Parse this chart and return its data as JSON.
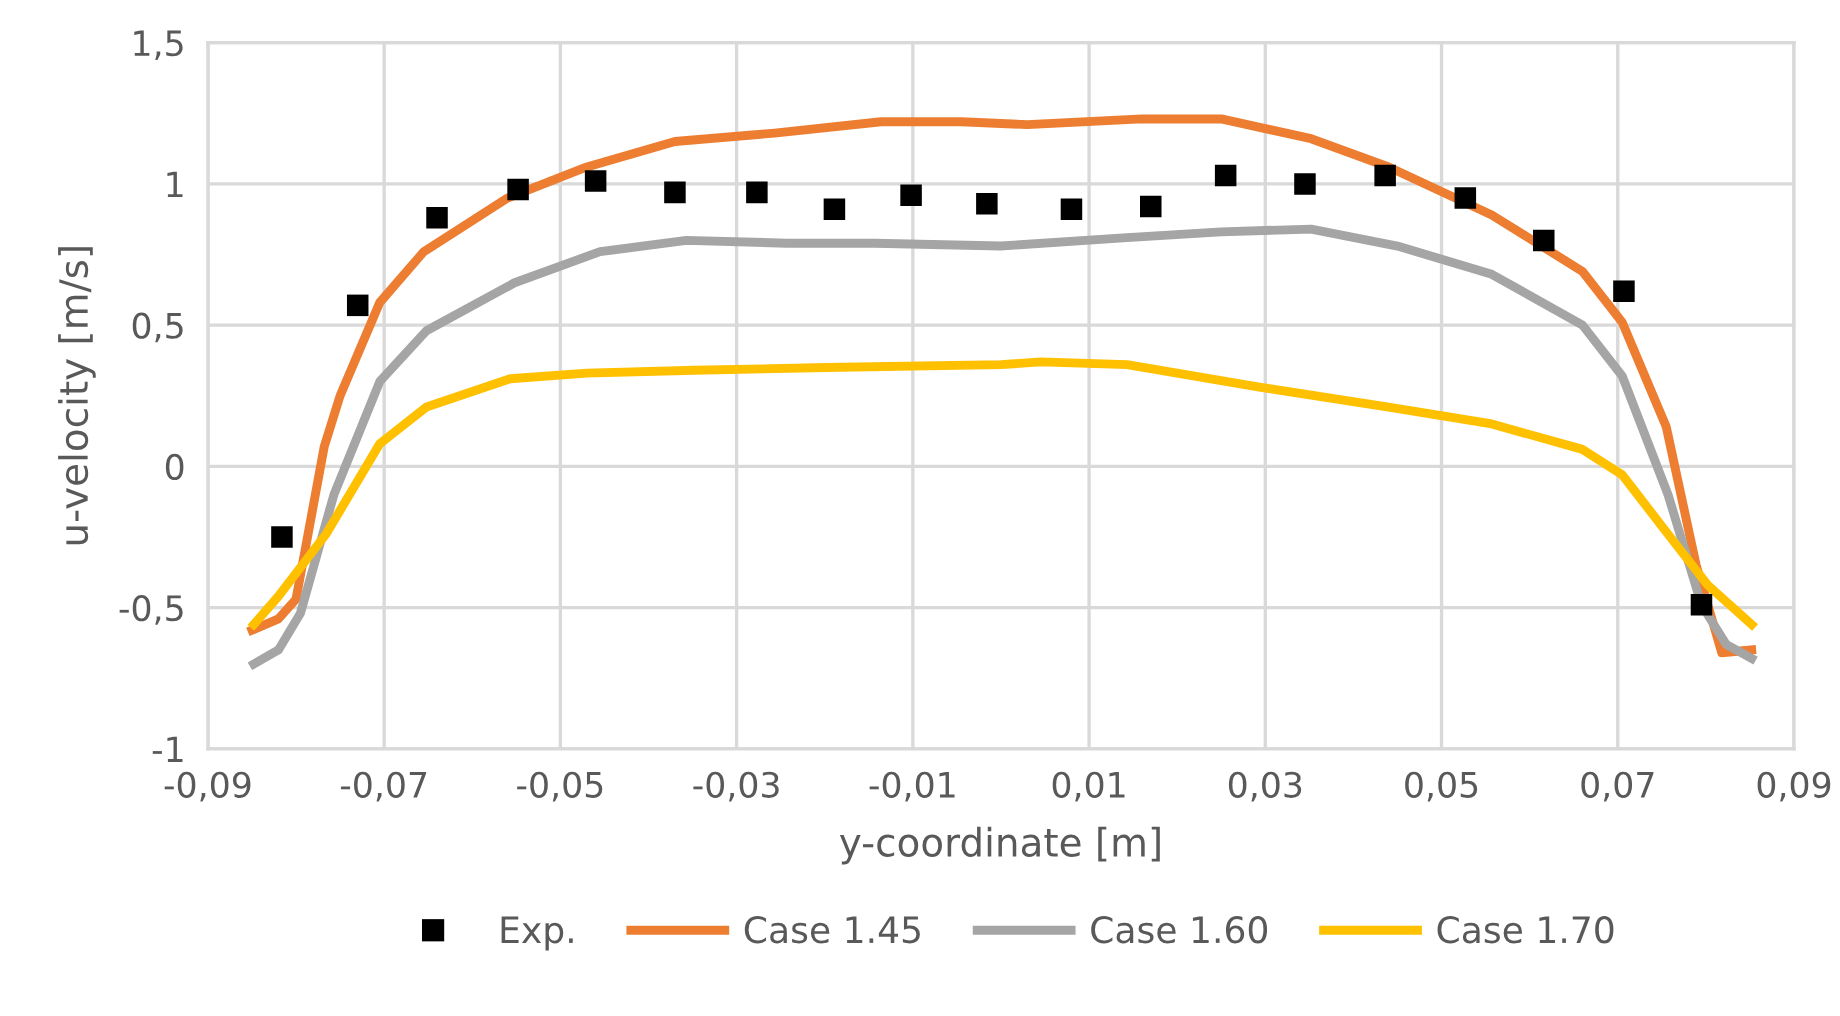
{
  "chart_data": {
    "type": "line",
    "xlabel": "y-coordinate [m]",
    "ylabel": "u-velocity [m/s]",
    "xlim": [
      -0.09,
      0.09
    ],
    "ylim": [
      -1,
      1.5
    ],
    "xticks": [
      {
        "value": -0.09,
        "label": "-0,09"
      },
      {
        "value": -0.07,
        "label": "-0,07"
      },
      {
        "value": -0.05,
        "label": "-0,05"
      },
      {
        "value": -0.03,
        "label": "-0,03"
      },
      {
        "value": -0.01,
        "label": "-0,01"
      },
      {
        "value": 0.01,
        "label": "0,01"
      },
      {
        "value": 0.03,
        "label": "0,03"
      },
      {
        "value": 0.05,
        "label": "0,05"
      },
      {
        "value": 0.07,
        "label": "0,07"
      },
      {
        "value": 0.09,
        "label": "0,09"
      }
    ],
    "yticks": [
      -1,
      {
        "value": -0.5,
        "label": "-0,5"
      },
      0,
      {
        "value": 0.5,
        "label": "0,5"
      },
      1,
      {
        "value": 1.5,
        "label": "1,5"
      }
    ],
    "grid": true,
    "legend": "bottom",
    "series": [
      {
        "name": "Exp.",
        "type": "scatter",
        "marker": "square",
        "color": "#000000",
        "x": [
          -0.0816,
          -0.073,
          -0.064,
          -0.0548,
          -0.046,
          -0.037,
          -0.0277,
          -0.0189,
          -0.0102,
          -0.0016,
          0.008,
          0.017,
          0.0255,
          0.0345,
          0.0436,
          0.0527,
          0.0616,
          0.0707,
          0.0795
        ],
        "values": [
          -0.25,
          0.57,
          0.88,
          0.98,
          1.01,
          0.97,
          0.97,
          0.91,
          0.96,
          0.93,
          0.91,
          0.92,
          1.03,
          1.0,
          1.03,
          0.95,
          0.8,
          0.62,
          -0.49
        ]
      },
      {
        "name": "Case 1.45",
        "color": "#ed7d31",
        "x": [
          -0.085,
          -0.082,
          -0.08,
          -0.0768,
          -0.075,
          -0.0705,
          -0.0655,
          -0.056,
          -0.047,
          -0.037,
          -0.0257,
          -0.0136,
          -0.0045,
          0.003,
          0.016,
          0.025,
          0.0352,
          0.044,
          0.0557,
          0.066,
          0.0705,
          0.0755,
          0.0789,
          0.0818,
          0.0852
        ],
        "values": [
          -0.58,
          -0.54,
          -0.47,
          0.07,
          0.25,
          0.58,
          0.76,
          0.95,
          1.06,
          1.15,
          1.18,
          1.22,
          1.22,
          1.21,
          1.23,
          1.23,
          1.16,
          1.06,
          0.89,
          0.69,
          0.51,
          0.14,
          -0.35,
          -0.66,
          -0.65
        ]
      },
      {
        "name": "Case 1.60",
        "color": "#a5a5a5",
        "x": [
          -0.0848,
          -0.082,
          -0.0795,
          -0.0757,
          -0.0705,
          -0.0652,
          -0.0552,
          -0.0455,
          -0.0357,
          -0.0243,
          -0.0143,
          0.0,
          0.0143,
          0.025,
          0.0352,
          0.045,
          0.0557,
          0.066,
          0.0705,
          0.0757,
          0.0795,
          0.0823,
          0.0852
        ],
        "values": [
          -0.7,
          -0.65,
          -0.52,
          -0.1,
          0.3,
          0.48,
          0.65,
          0.76,
          0.8,
          0.79,
          0.79,
          0.78,
          0.81,
          0.83,
          0.84,
          0.78,
          0.68,
          0.5,
          0.32,
          -0.1,
          -0.49,
          -0.63,
          -0.68
        ]
      },
      {
        "name": "Case 1.70",
        "color": "#ffc000",
        "x": [
          -0.0848,
          -0.082,
          -0.0766,
          -0.0705,
          -0.0652,
          -0.0557,
          -0.047,
          -0.0348,
          -0.0198,
          0.0,
          0.0045,
          0.0143,
          0.0295,
          0.044,
          0.0557,
          0.066,
          0.0705,
          0.0757,
          0.0802,
          0.0852
        ],
        "values": [
          -0.56,
          -0.46,
          -0.24,
          0.08,
          0.21,
          0.31,
          0.33,
          0.34,
          0.35,
          0.36,
          0.37,
          0.36,
          0.28,
          0.21,
          0.15,
          0.06,
          -0.03,
          -0.24,
          -0.42,
          -0.56
        ]
      }
    ]
  }
}
